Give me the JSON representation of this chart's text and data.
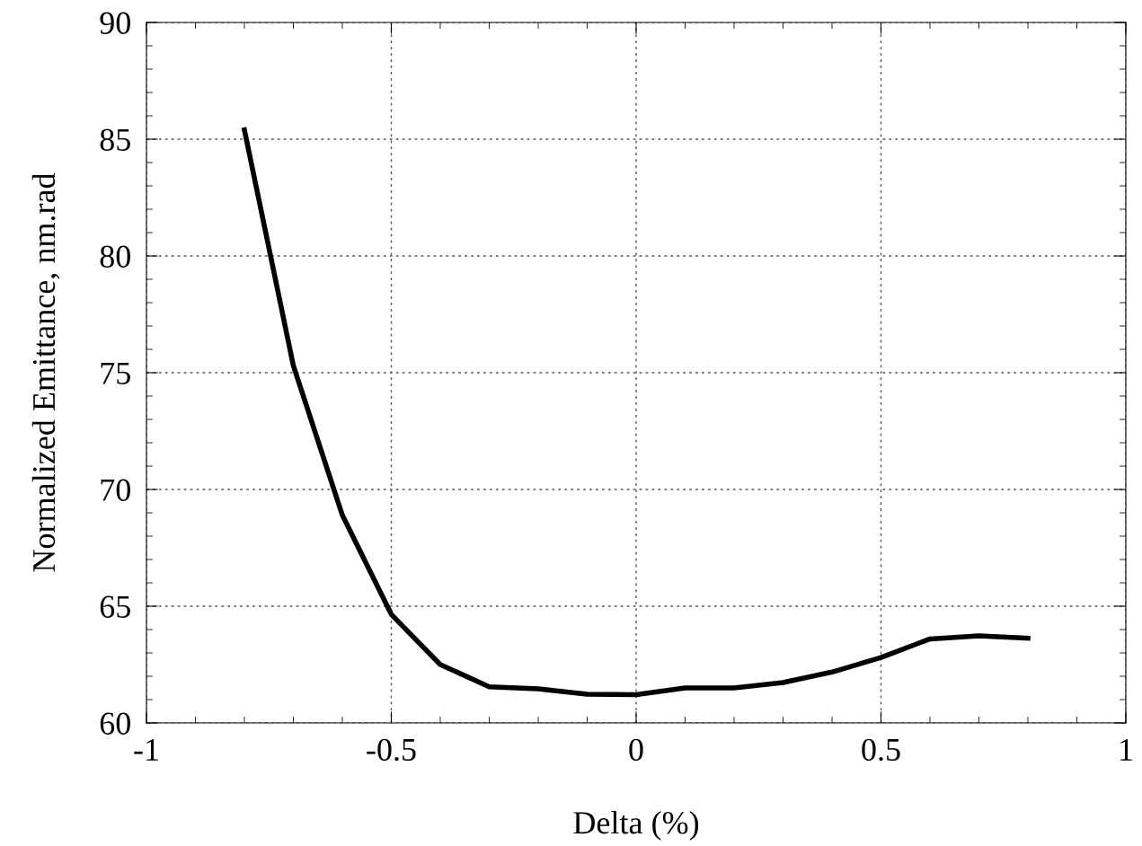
{
  "chart_data": {
    "type": "line",
    "xlabel": "Delta (%)",
    "ylabel": "Normalized Emittance, nm.rad",
    "x": [
      -0.8,
      -0.7,
      -0.6,
      -0.5,
      -0.4,
      -0.3,
      -0.2,
      -0.1,
      0,
      0.1,
      0.2,
      0.3,
      0.4,
      0.5,
      0.6,
      0.7,
      0.8
    ],
    "series": [
      {
        "color": "#000000",
        "values": [
          85.4,
          75.3,
          68.9,
          64.65,
          62.5,
          61.55,
          61.46,
          61.23,
          61.21,
          61.5,
          61.5,
          61.73,
          62.18,
          62.8,
          63.6,
          63.73,
          63.63
        ]
      }
    ],
    "xlim": [
      -1,
      1
    ],
    "xticks": [
      -1,
      -0.5,
      0,
      0.5,
      1
    ],
    "ylim": [
      60,
      90
    ],
    "yticks": [
      60,
      65,
      70,
      75,
      80,
      85,
      90
    ],
    "grid": true,
    "marker": "none",
    "line_style": "solid"
  }
}
